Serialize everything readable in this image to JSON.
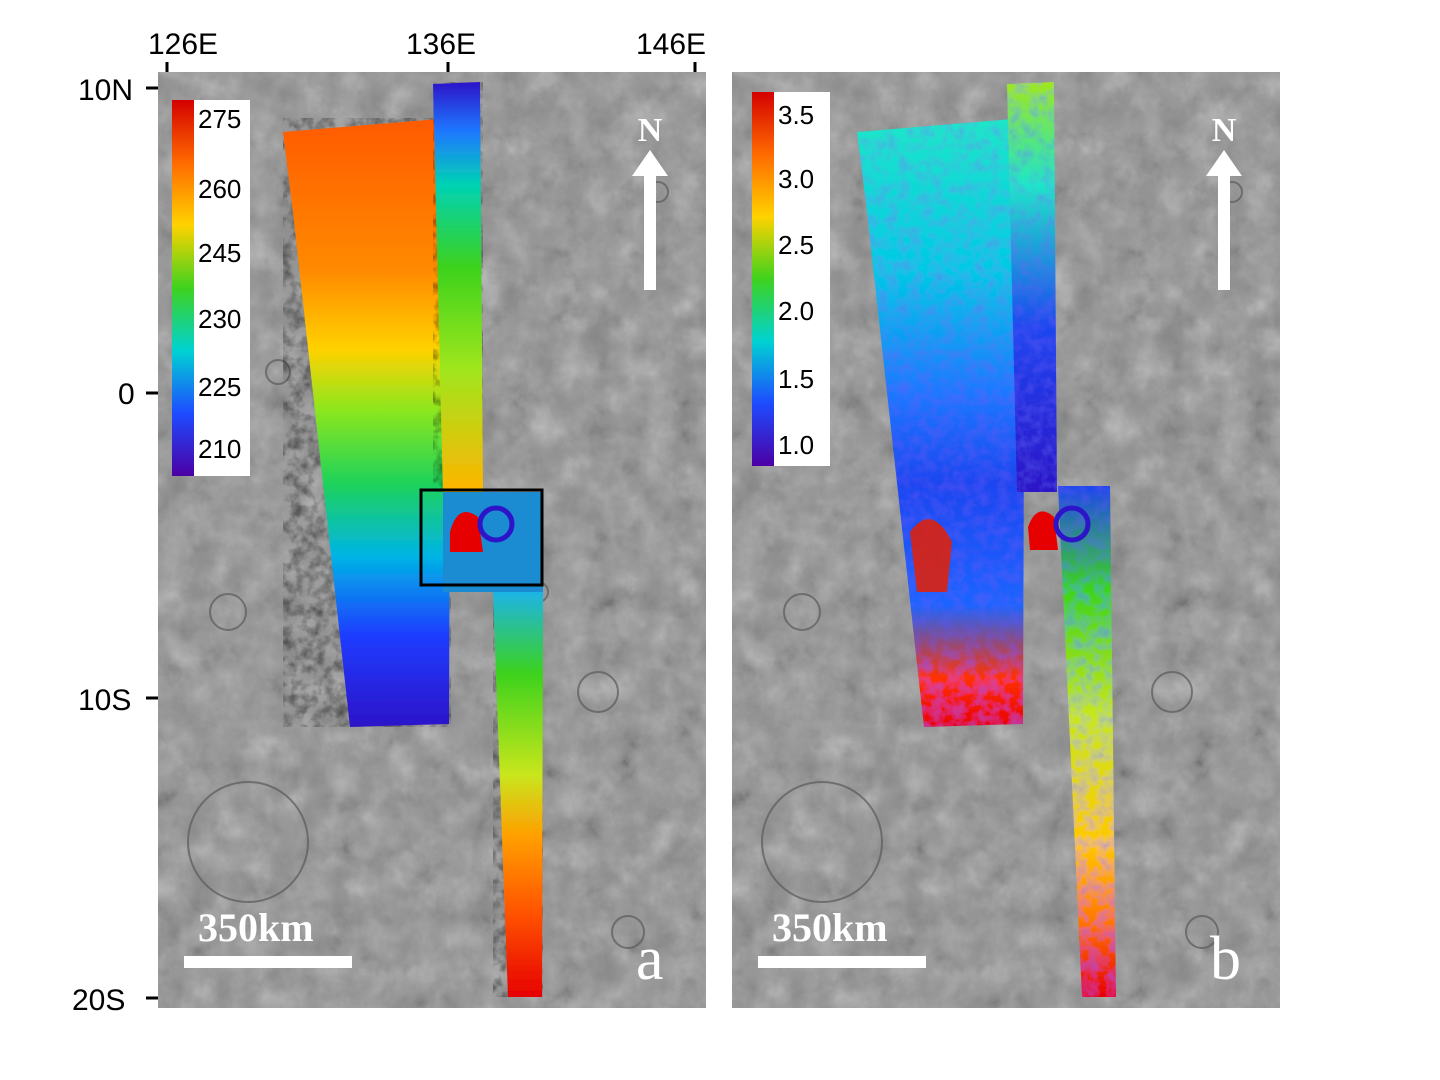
{
  "axes": {
    "longitude_ticks": [
      "126E",
      "136E",
      "146E"
    ],
    "latitude_ticks": [
      "10N",
      "0",
      "10S",
      "20S"
    ]
  },
  "panel_a": {
    "letter": "a",
    "colorbar_labels": [
      "275",
      "260",
      "245",
      "230",
      "225",
      "210"
    ],
    "north_label": "N",
    "scale_label": "350km",
    "highlight_box": true
  },
  "panel_b": {
    "letter": "b",
    "colorbar_labels": [
      "3.5",
      "3.0",
      "2.5",
      "2.0",
      "1.5",
      "1.0"
    ],
    "north_label": "N",
    "scale_label": "350km"
  },
  "colors": {
    "ramp": [
      "#d40000",
      "#ff6a00",
      "#ffd200",
      "#3fd21e",
      "#00d2d2",
      "#1e4bff",
      "#4b00a5"
    ],
    "terrain_base": "#8e8e8e",
    "frame_box": "#000000"
  }
}
